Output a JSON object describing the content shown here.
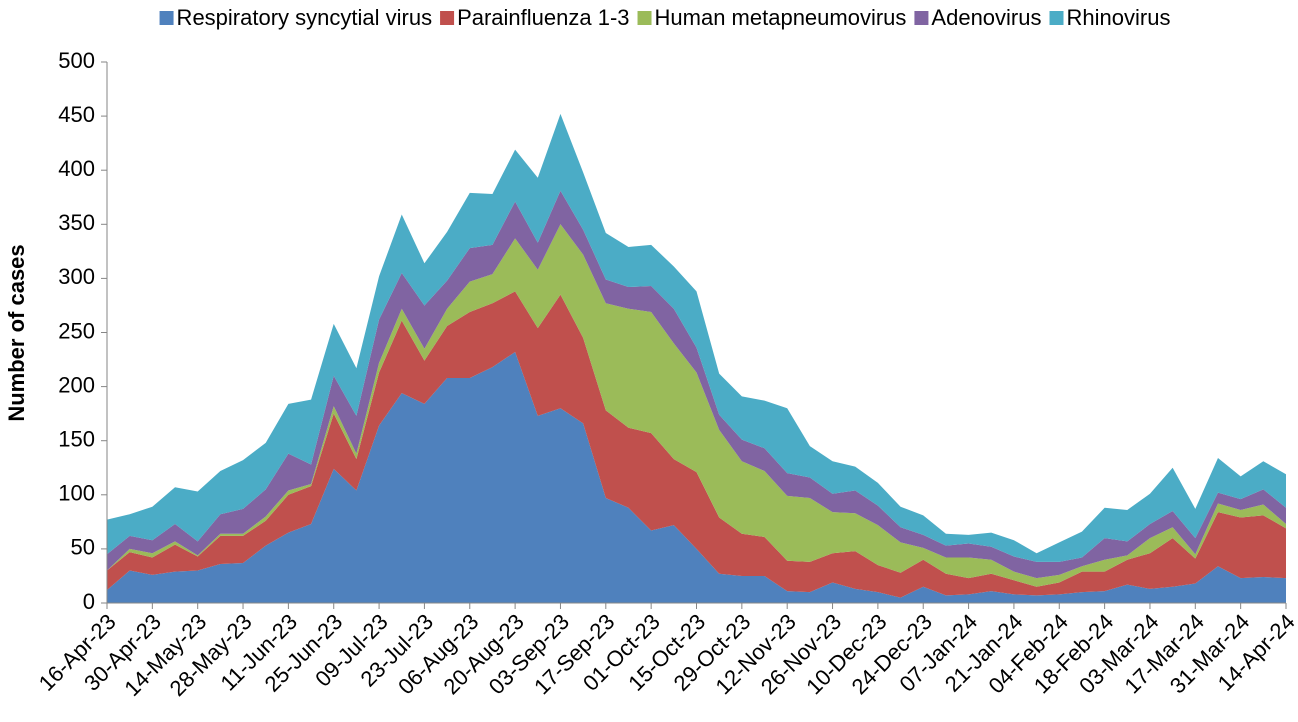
{
  "chart_data": {
    "type": "stacked-area",
    "y_label": "Number of cases",
    "categories": [
      "16-Apr-23",
      null,
      "30-Apr-23",
      null,
      "14-May-23",
      null,
      "28-May-23",
      null,
      "11-Jun-23",
      null,
      "25-Jun-23",
      null,
      "09-Jul-23",
      null,
      "23-Jul-23",
      null,
      "06-Aug-23",
      null,
      "20-Aug-23",
      null,
      "03-Sep-23",
      null,
      "17-Sep-23",
      null,
      "01-Oct-23",
      null,
      "15-Oct-23",
      null,
      "29-Oct-23",
      null,
      "12-Nov-23",
      null,
      "26-Nov-23",
      null,
      "10-Dec-23",
      null,
      "24-Dec-23",
      null,
      "07-Jan-24",
      null,
      "21-Jan-24",
      null,
      "04-Feb-24",
      null,
      "18-Feb-24",
      null,
      "03-Mar-24",
      null,
      "17-Mar-24",
      null,
      "31-Mar-24",
      null,
      "14-Apr-24"
    ],
    "series": [
      {
        "name": "Respiratory syncytial virus",
        "color": "#4f81bd",
        "values": [
          12,
          30,
          26,
          29,
          30,
          36,
          37,
          53,
          65,
          73,
          124,
          104,
          164,
          194,
          184,
          208,
          208,
          218,
          232,
          173,
          180,
          166,
          97,
          88,
          67,
          72,
          50,
          27,
          25,
          25,
          11,
          10,
          19,
          13,
          10,
          5,
          15,
          7,
          8,
          11,
          8,
          7,
          8,
          10,
          11,
          17,
          13,
          15,
          18,
          34,
          23,
          24,
          23
        ]
      },
      {
        "name": "Parainfluenza 1-3",
        "color": "#c0504d",
        "values": [
          18,
          17,
          16,
          25,
          13,
          26,
          25,
          23,
          35,
          35,
          51,
          29,
          49,
          67,
          40,
          48,
          61,
          59,
          56,
          81,
          105,
          79,
          81,
          74,
          90,
          61,
          71,
          52,
          39,
          36,
          28,
          28,
          27,
          35,
          25,
          23,
          25,
          20,
          15,
          16,
          13,
          8,
          11,
          19,
          18,
          23,
          33,
          45,
          23,
          50,
          56,
          57,
          46
        ]
      },
      {
        "name": "Human metapneumovirus",
        "color": "#9bbb59",
        "values": [
          0,
          3,
          4,
          3,
          1,
          2,
          2,
          4,
          4,
          2,
          7,
          5,
          9,
          11,
          11,
          16,
          28,
          27,
          49,
          54,
          65,
          77,
          99,
          110,
          112,
          107,
          92,
          81,
          67,
          61,
          60,
          59,
          38,
          35,
          37,
          28,
          11,
          15,
          19,
          13,
          8,
          8,
          7,
          5,
          11,
          4,
          14,
          10,
          4,
          8,
          7,
          10,
          4
        ]
      },
      {
        "name": "Adenovirus",
        "color": "#8064a2",
        "values": [
          15,
          12,
          12,
          16,
          13,
          18,
          23,
          25,
          34,
          18,
          28,
          35,
          40,
          33,
          40,
          26,
          31,
          27,
          34,
          25,
          31,
          23,
          22,
          20,
          24,
          32,
          23,
          14,
          20,
          21,
          21,
          19,
          17,
          21,
          18,
          14,
          12,
          11,
          13,
          12,
          14,
          15,
          12,
          8,
          20,
          13,
          13,
          15,
          15,
          10,
          10,
          14,
          15
        ]
      },
      {
        "name": "Rhinovirus",
        "color": "#4bacc6",
        "values": [
          32,
          20,
          31,
          34,
          46,
          40,
          45,
          43,
          46,
          60,
          48,
          44,
          40,
          54,
          39,
          45,
          51,
          47,
          48,
          60,
          71,
          53,
          43,
          37,
          38,
          39,
          52,
          38,
          40,
          44,
          60,
          29,
          30,
          22,
          21,
          19,
          18,
          11,
          8,
          13,
          15,
          8,
          18,
          24,
          28,
          29,
          28,
          40,
          27,
          32,
          21,
          26,
          31
        ]
      }
    ],
    "ylim": [
      0,
      500
    ],
    "yticks": [
      0,
      50,
      100,
      150,
      200,
      250,
      300,
      350,
      400,
      450,
      500
    ],
    "grid": false,
    "legend": "top"
  }
}
